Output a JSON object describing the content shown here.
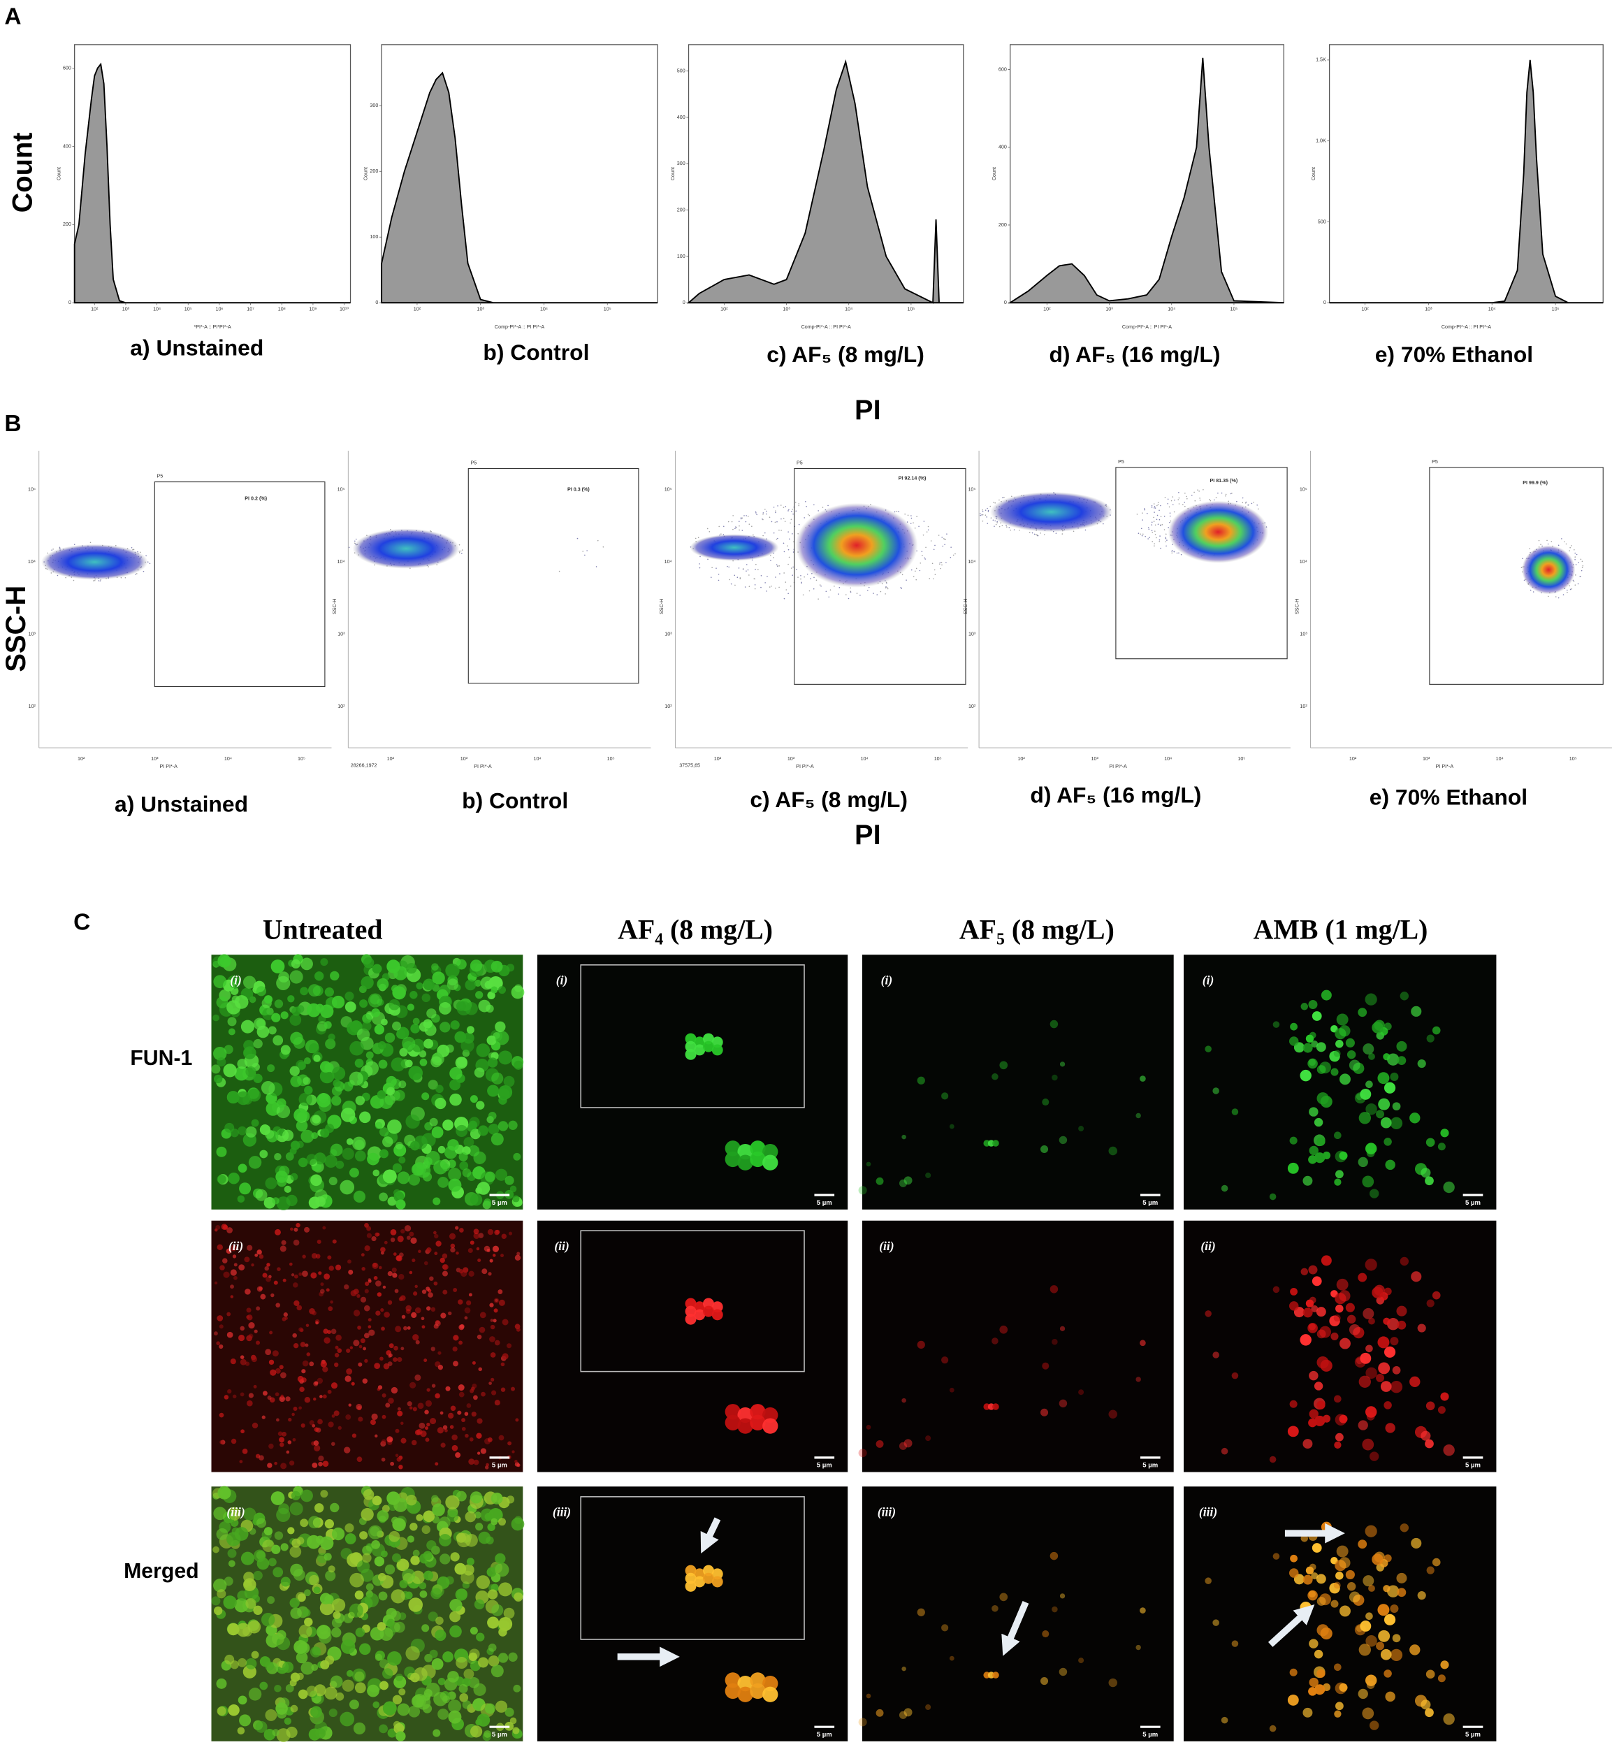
{
  "panel_labels": [
    "A",
    "B",
    "C"
  ],
  "panel_a": {
    "y_label": "Count",
    "x_label": "PI"
  },
  "chart_data": [
    {
      "type": "area",
      "title": "a) Unstained",
      "y_label": "Count",
      "x_label": "*PI*-A :: PI*PI*-A",
      "color": "#999999",
      "x": [
        1.36,
        1.5,
        1.7,
        1.9,
        2.0,
        2.1,
        2.2,
        2.3,
        2.4,
        2.5,
        2.6,
        2.8,
        3.0,
        10.2
      ],
      "values": [
        150,
        200,
        380,
        520,
        580,
        600,
        610,
        560,
        400,
        200,
        60,
        5,
        0,
        0
      ],
      "xlim": [
        1.36,
        10.2
      ],
      "ylim": [
        0,
        660
      ],
      "xticks": [
        {
          "value": 2,
          "label": "10²"
        },
        {
          "value": 3,
          "label": "10³"
        },
        {
          "value": 4,
          "label": "10⁴"
        },
        {
          "value": 5,
          "label": "10⁵"
        },
        {
          "value": 6,
          "label": "10⁶"
        },
        {
          "value": 7,
          "label": "10⁷"
        },
        {
          "value": 8,
          "label": "10⁸"
        },
        {
          "value": 9,
          "label": "10⁹"
        },
        {
          "value": 10,
          "label": "10¹⁰"
        }
      ],
      "yticks": [
        0,
        200,
        400,
        600
      ]
    },
    {
      "type": "area",
      "title": "b) Control",
      "y_label": "Count",
      "x_label": "Comp-PI*-A :: PI PI*-A",
      "color": "#999999",
      "x": [
        1.44,
        1.6,
        1.8,
        2.0,
        2.2,
        2.3,
        2.4,
        2.5,
        2.6,
        2.7,
        2.8,
        3.0,
        3.2,
        5.79
      ],
      "values": [
        60,
        130,
        200,
        260,
        320,
        340,
        350,
        320,
        250,
        150,
        60,
        5,
        0,
        0
      ],
      "xlim": [
        1.44,
        5.79
      ],
      "ylim": [
        0,
        393
      ],
      "xticks": [
        {
          "value": 2,
          "label": "10²"
        },
        {
          "value": 3,
          "label": "10³"
        },
        {
          "value": 4,
          "label": "10⁴"
        },
        {
          "value": 5,
          "label": "10⁵"
        }
      ],
      "yticks": [
        0,
        100,
        200,
        300
      ]
    },
    {
      "type": "area",
      "title": "c) AF₅ (8 mg/L)",
      "y_label": "Count",
      "x_label": "Comp-PI*-A :: PI PI*-A",
      "color": "#999999",
      "x": [
        1.43,
        1.6,
        2.0,
        2.4,
        2.8,
        3.0,
        3.3,
        3.6,
        3.8,
        3.95,
        4.1,
        4.3,
        4.6,
        4.9,
        5.2,
        5.35,
        5.4,
        5.45,
        5.84
      ],
      "values": [
        0,
        20,
        50,
        60,
        40,
        50,
        150,
        330,
        460,
        520,
        430,
        250,
        100,
        30,
        10,
        0,
        180,
        0,
        0
      ],
      "xlim": [
        1.43,
        5.84
      ],
      "ylim": [
        0,
        557
      ],
      "xticks": [
        {
          "value": 2,
          "label": "10²"
        },
        {
          "value": 3,
          "label": "10³"
        },
        {
          "value": 4,
          "label": "10⁴"
        },
        {
          "value": 5,
          "label": "10⁵"
        }
      ],
      "yticks": [
        0,
        100,
        200,
        300,
        400,
        500
      ]
    },
    {
      "type": "area",
      "title": "d) AF₅ (16 mg/L)",
      "y_label": "Count",
      "x_label": "Comp-PI*-A :: PI PI*-A",
      "color": "#999999",
      "x": [
        1.41,
        1.7,
        2.0,
        2.2,
        2.4,
        2.6,
        2.8,
        3.0,
        3.3,
        3.6,
        3.8,
        4.0,
        4.2,
        4.4,
        4.5,
        4.6,
        4.8,
        5.0,
        5.8
      ],
      "values": [
        0,
        30,
        70,
        95,
        100,
        70,
        20,
        5,
        10,
        20,
        60,
        170,
        270,
        400,
        630,
        400,
        80,
        5,
        0
      ],
      "xlim": [
        1.41,
        5.8
      ],
      "ylim": [
        0,
        664
      ],
      "xticks": [
        {
          "value": 2,
          "label": "10²"
        },
        {
          "value": 3,
          "label": "10³"
        },
        {
          "value": 4,
          "label": "10⁴"
        },
        {
          "value": 5,
          "label": "10⁵"
        }
      ],
      "yticks": [
        0,
        200,
        400,
        600
      ]
    },
    {
      "type": "area",
      "title": "e) 70% Ethanol",
      "y_label": "Count",
      "x_label": "Comp-PI*-A :: PI PI*-A",
      "color": "#999999",
      "x": [
        1.44,
        4.0,
        4.2,
        4.4,
        4.5,
        4.55,
        4.6,
        4.65,
        4.7,
        4.8,
        5.0,
        5.2,
        5.75
      ],
      "values": [
        0,
        0,
        10,
        200,
        800,
        1300,
        1500,
        1300,
        900,
        300,
        40,
        0,
        0
      ],
      "xlim": [
        1.44,
        5.75
      ],
      "ylim": [
        0,
        1595
      ],
      "xticks": [
        {
          "value": 2,
          "label": "10²"
        },
        {
          "value": 3,
          "label": "10³"
        },
        {
          "value": 4,
          "label": "10⁴"
        },
        {
          "value": 5,
          "label": "10⁵"
        }
      ],
      "yticks": [
        0,
        {
          "value": 500,
          "label": "500"
        },
        {
          "value": 1000,
          "label": "1.0K"
        },
        {
          "value": 1500,
          "label": "1.5K"
        }
      ]
    }
  ],
  "panel_b": {
    "y_label": "SSC-H",
    "x_label": "PI",
    "axis_y": "SSC-H",
    "axis_x": "PI PI*-A",
    "x_ticks": [
      "10²",
      "10³",
      "10⁴",
      "10⁵"
    ],
    "y_ticks": [
      "10⁵",
      "10⁴",
      "10³",
      "10²"
    ],
    "plots": [
      {
        "title": "a) Unstained",
        "gate": "P5",
        "gate_label": "PI 0.2 (%)",
        "note": null
      },
      {
        "title": "b) Control",
        "gate": "P5",
        "gate_label": "PI 0.3 (%)",
        "note": "28266,1972"
      },
      {
        "title": "c) AF₅ (8 mg/L)",
        "gate": "P5",
        "gate_label": "PI 92.14 (%)",
        "note": "37575,65"
      },
      {
        "title": "d) AF₅ (16 mg/L)",
        "gate": "P5",
        "gate_label": "PI 81.35 (%)",
        "note": null
      },
      {
        "title": "e) 70% Ethanol",
        "gate": "P5",
        "gate_label": "PI 99.9 (%)",
        "note": null
      }
    ]
  },
  "panel_c": {
    "columns": [
      "Untreated",
      "AF₄ (8 mg/L)",
      "AF₅ (8 mg/L)",
      "AMB (1 mg/L)"
    ],
    "rows": [
      "FUN-1",
      null,
      "Merged"
    ],
    "row_markers": [
      "(i)",
      "(ii)",
      "(iii)"
    ],
    "scale_bar": "5 µm"
  }
}
